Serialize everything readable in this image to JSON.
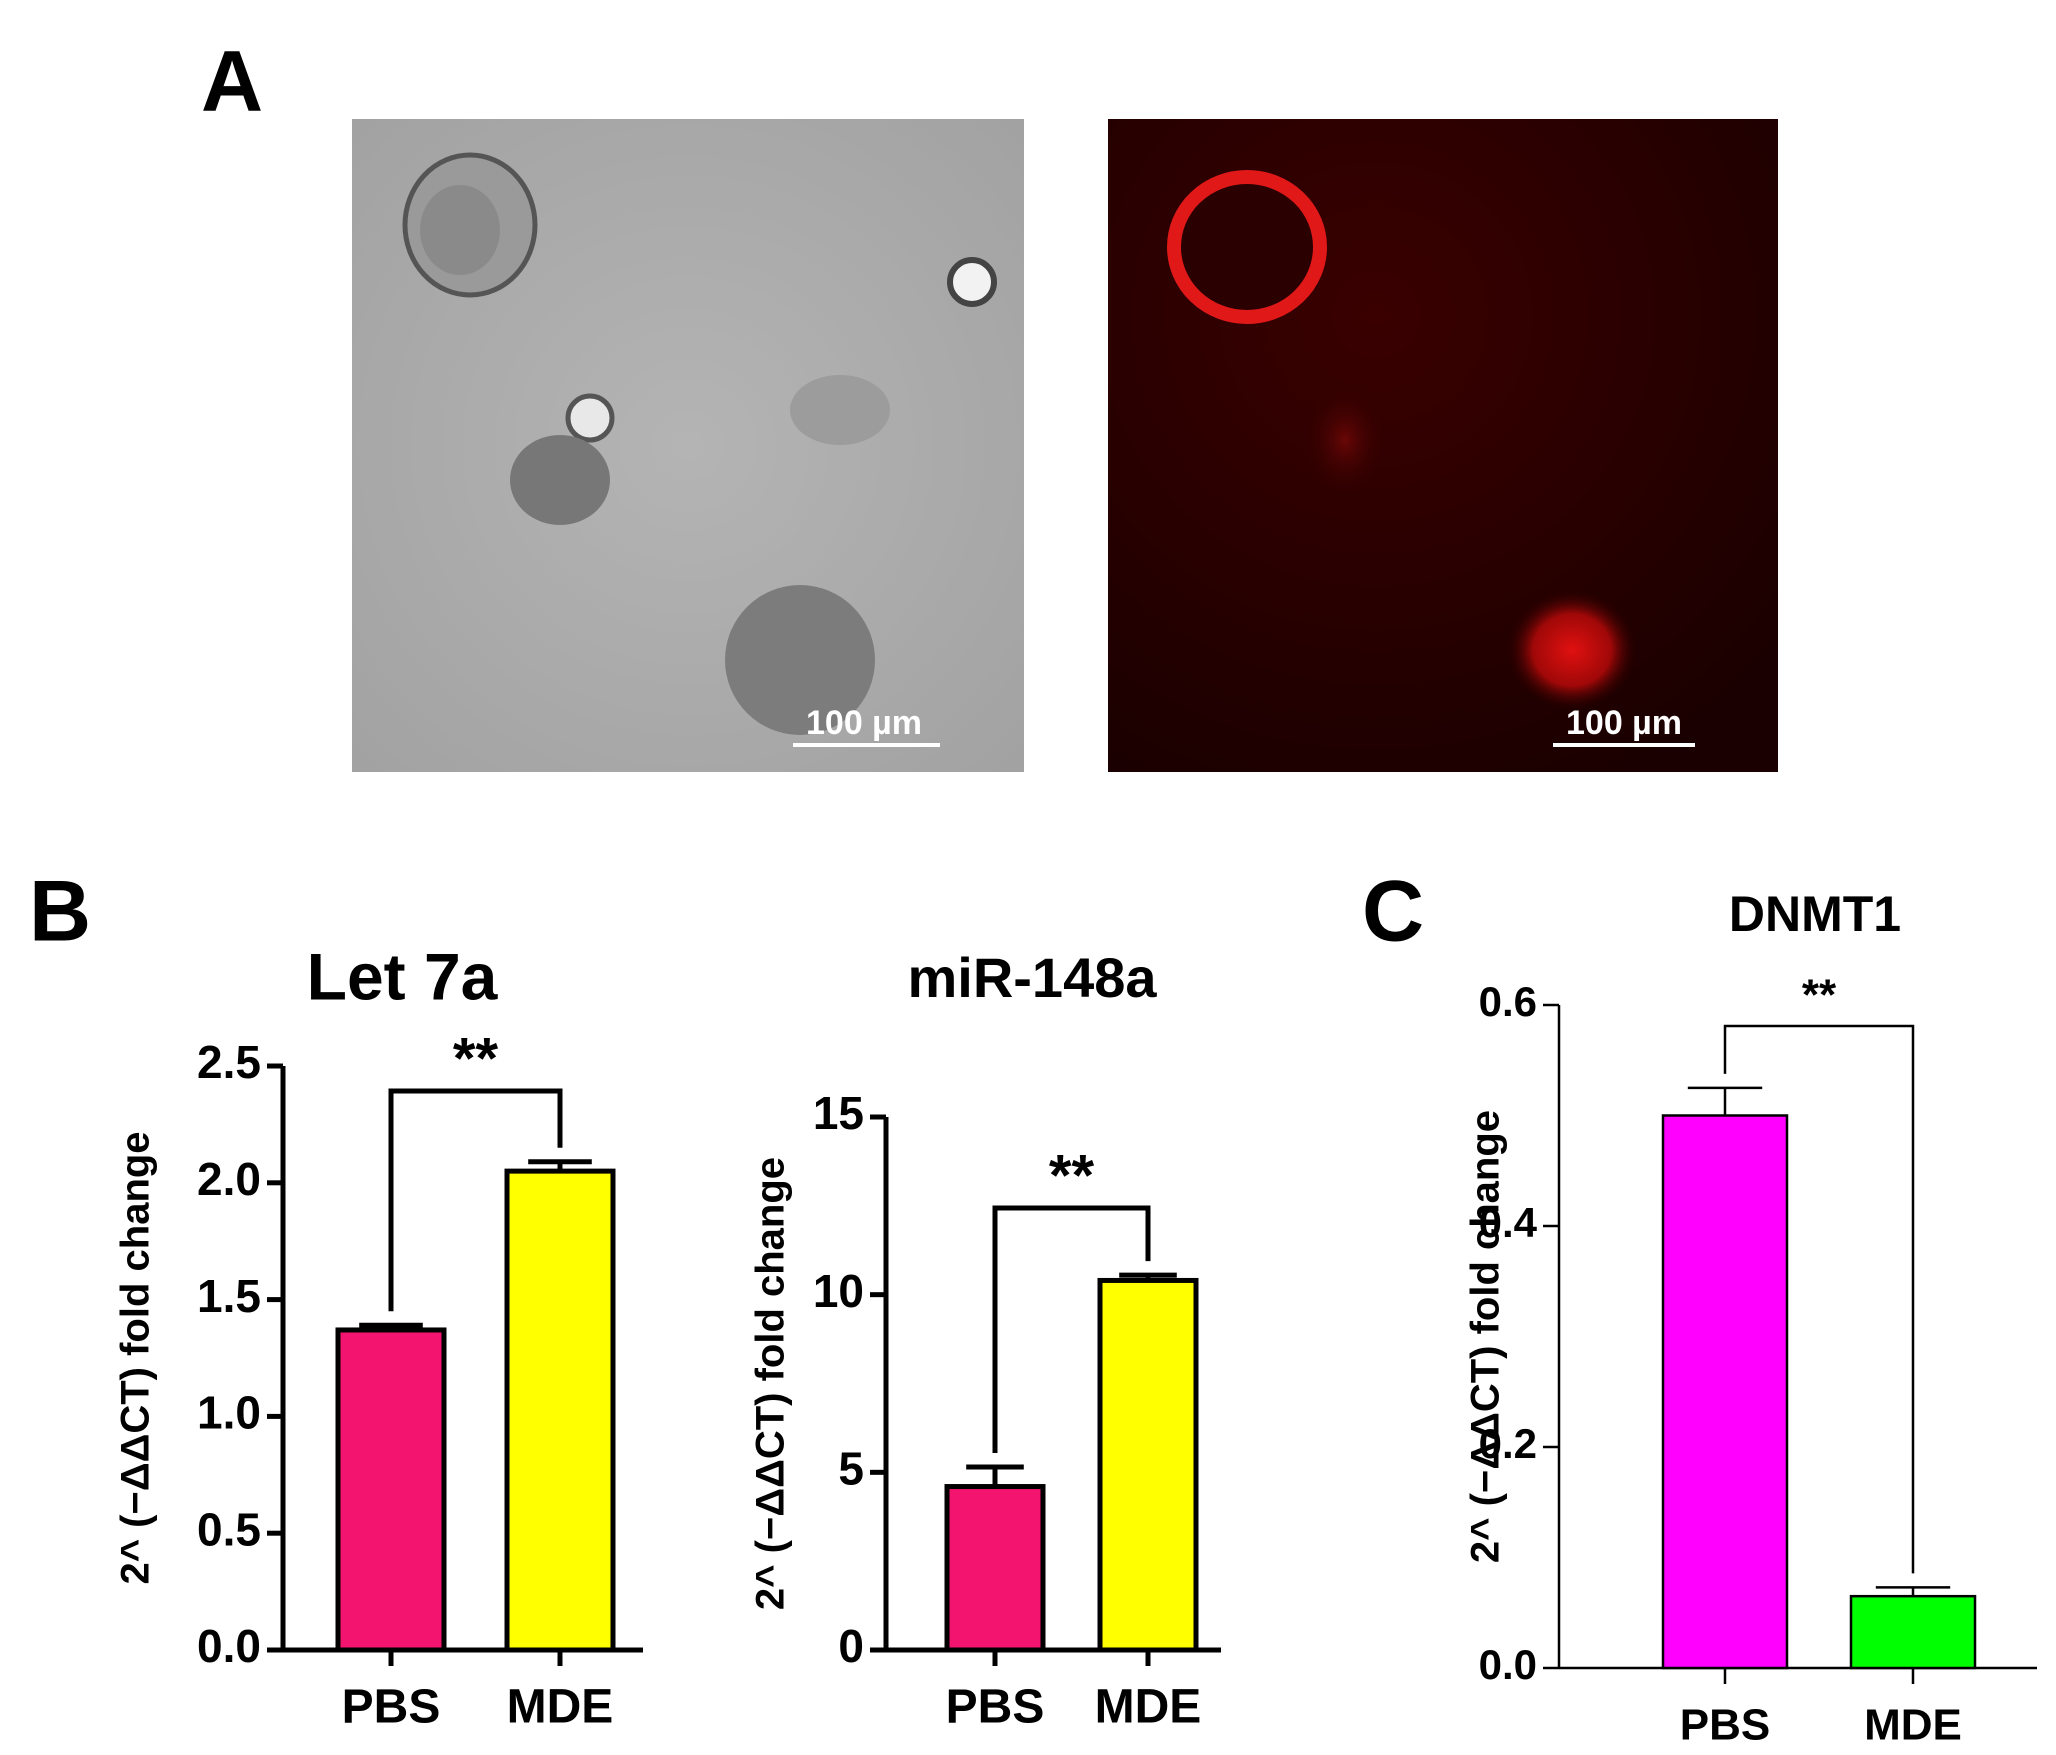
{
  "panels": {
    "a": "A",
    "b": "B",
    "c": "C"
  },
  "scale_bars": [
    "100 µm",
    "100 µm"
  ],
  "chart_data": [
    {
      "type": "bar",
      "title": "Let 7a",
      "ylabel": "2^ (−ΔΔCT) fold change",
      "categories": [
        "PBS",
        "MDE"
      ],
      "values": [
        1.37,
        2.05
      ],
      "errors": [
        0.02,
        0.04
      ],
      "colors": [
        "#f2146e",
        "#ffff00"
      ],
      "annotation": "**",
      "ylim": [
        0,
        2.5
      ],
      "yticks": [
        {
          "value": 0,
          "label": "0.0"
        },
        0.5,
        {
          "value": 1,
          "label": "1.0"
        },
        1.5,
        {
          "value": 2,
          "label": "2.0"
        },
        2.5
      ]
    },
    {
      "type": "bar",
      "title": "miR-148a",
      "ylabel": "2^ (−ΔΔCT) fold change",
      "categories": [
        "PBS",
        "MDE"
      ],
      "values": [
        4.6,
        10.4
      ],
      "errors": [
        0.55,
        0.15
      ],
      "colors": [
        "#f2146e",
        "#ffff00"
      ],
      "annotation": "**",
      "ylim": [
        0,
        15
      ],
      "yticks": [
        0,
        5,
        10,
        15
      ]
    },
    {
      "type": "bar",
      "title": "DNMT1",
      "ylabel": "2^ (−ΔΔCT) fold change",
      "categories": [
        "PBS",
        "MDE"
      ],
      "values": [
        0.5,
        0.065
      ],
      "errors": [
        0.025,
        0.008
      ],
      "colors": [
        "#ff00ff",
        "#00ff00"
      ],
      "annotation": "**",
      "ylim": [
        0,
        0.6
      ],
      "yticks": [
        {
          "value": 0,
          "label": "0.0"
        },
        0.2,
        0.4,
        0.6
      ]
    }
  ]
}
